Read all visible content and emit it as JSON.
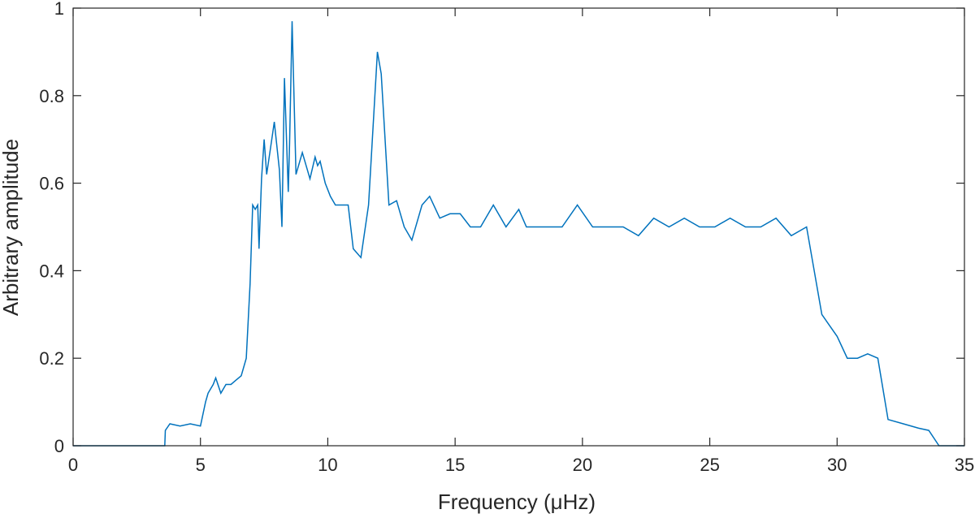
{
  "chart_data": {
    "type": "line",
    "title": "",
    "xlabel": "Frequency (μHz)",
    "ylabel": "Arbitrary amplitude",
    "xlim": [
      0,
      35
    ],
    "ylim": [
      0,
      1
    ],
    "xticks": [
      0,
      5,
      10,
      15,
      20,
      25,
      30,
      35
    ],
    "yticks": [
      0,
      0.2,
      0.4,
      0.6,
      0.8,
      1
    ],
    "xtick_labels": [
      "0",
      "5",
      "10",
      "15",
      "20",
      "25",
      "30",
      "35"
    ],
    "ytick_labels": [
      "0",
      "0.2",
      "0.4",
      "0.6",
      "0.8",
      "1"
    ],
    "grid": false,
    "line_color": "#0072BD",
    "axis_color": "#262626",
    "series": [
      {
        "x": [
          0.0,
          3.6,
          3.62,
          3.8,
          4.2,
          4.6,
          5.0,
          5.2,
          5.3,
          5.5,
          5.6,
          5.8,
          6.0,
          6.2,
          6.4,
          6.6,
          6.8,
          6.95,
          7.05,
          7.15,
          7.25,
          7.3,
          7.4,
          7.5,
          7.6,
          7.8,
          7.9,
          8.1,
          8.2,
          8.3,
          8.45,
          8.5,
          8.6,
          8.75,
          9.0,
          9.3,
          9.5,
          9.6,
          9.7,
          9.9,
          10.1,
          10.3,
          10.6,
          10.8,
          11.0,
          11.3,
          11.6,
          11.95,
          12.1,
          12.4,
          12.7,
          13.0,
          13.3,
          13.7,
          14.0,
          14.4,
          14.8,
          15.2,
          15.6,
          16.0,
          16.5,
          17.0,
          17.5,
          17.8,
          18.0,
          18.6,
          19.2,
          19.8,
          20.4,
          21.0,
          21.6,
          22.2,
          22.8,
          23.4,
          24.0,
          24.6,
          25.2,
          25.8,
          26.4,
          27.0,
          27.6,
          28.2,
          28.8,
          29.4,
          30.0,
          30.4,
          30.8,
          31.2,
          31.6,
          32.0,
          32.6,
          33.2,
          33.6,
          34.0,
          35.0
        ],
        "y": [
          0.0,
          0.0,
          0.035,
          0.05,
          0.045,
          0.05,
          0.045,
          0.1,
          0.12,
          0.14,
          0.155,
          0.12,
          0.14,
          0.14,
          0.15,
          0.16,
          0.2,
          0.37,
          0.55,
          0.54,
          0.55,
          0.45,
          0.61,
          0.7,
          0.62,
          0.7,
          0.74,
          0.63,
          0.5,
          0.84,
          0.58,
          0.69,
          0.97,
          0.62,
          0.67,
          0.61,
          0.66,
          0.64,
          0.65,
          0.6,
          0.57,
          0.55,
          0.55,
          0.55,
          0.45,
          0.43,
          0.55,
          0.9,
          0.85,
          0.55,
          0.56,
          0.5,
          0.47,
          0.55,
          0.57,
          0.52,
          0.53,
          0.53,
          0.5,
          0.5,
          0.55,
          0.5,
          0.54,
          0.5,
          0.5,
          0.5,
          0.5,
          0.55,
          0.5,
          0.5,
          0.5,
          0.48,
          0.52,
          0.5,
          0.52,
          0.5,
          0.5,
          0.52,
          0.5,
          0.5,
          0.52,
          0.48,
          0.5,
          0.3,
          0.25,
          0.2,
          0.2,
          0.21,
          0.2,
          0.06,
          0.05,
          0.04,
          0.035,
          0.0,
          0.0
        ]
      }
    ]
  }
}
